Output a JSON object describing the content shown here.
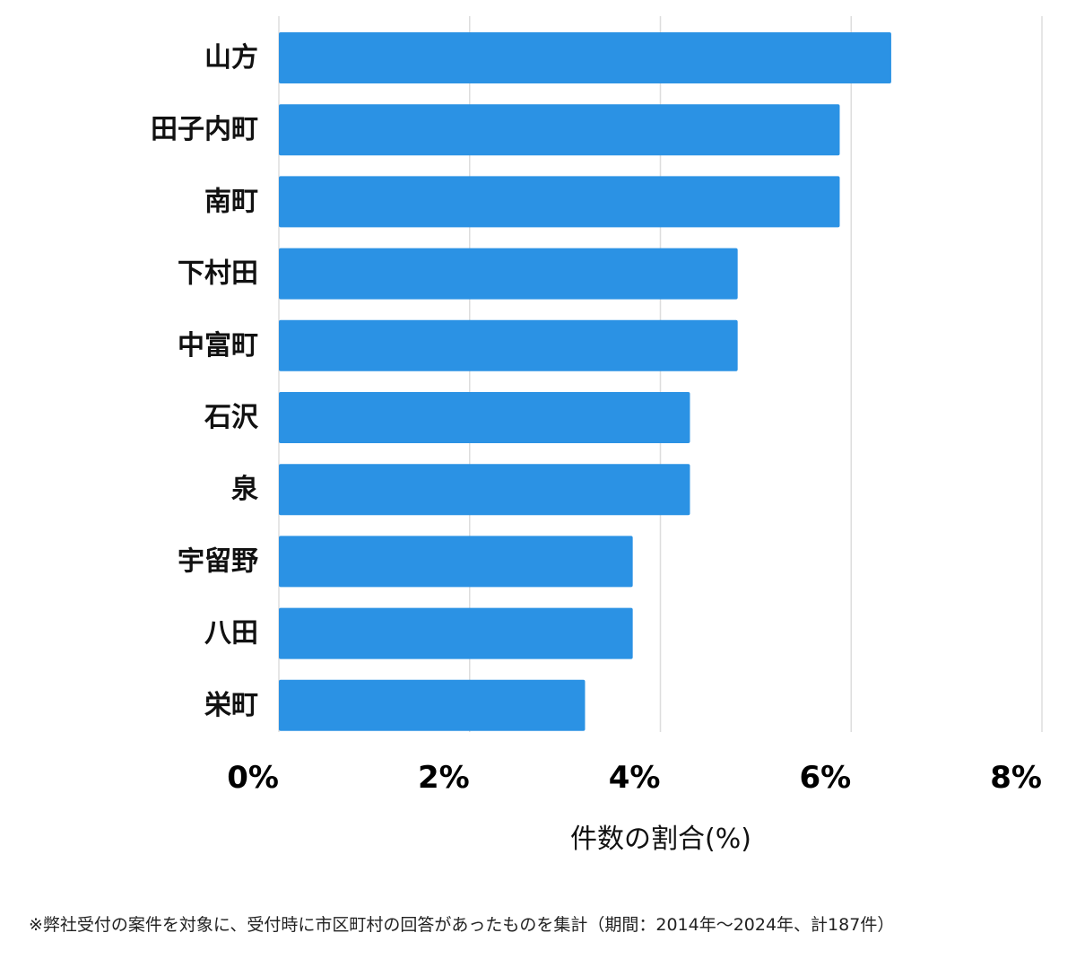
{
  "chart_data": {
    "type": "bar",
    "orientation": "horizontal",
    "categories": [
      "山方",
      "田子内町",
      "南町",
      "下村田",
      "中富町",
      "石沢",
      "泉",
      "宇留野",
      "八田",
      "栄町"
    ],
    "values": [
      6.42,
      5.88,
      5.88,
      4.81,
      4.81,
      4.31,
      4.31,
      3.71,
      3.71,
      3.21
    ],
    "xlim": [
      0,
      8
    ],
    "xticks": [
      0,
      2,
      4,
      6,
      8
    ],
    "tick_labels": [
      "0%",
      "2%",
      "4%",
      "6%",
      "8%"
    ],
    "xlabel": "件数の割合(%)",
    "ylabel": "",
    "grid": true,
    "bar_color": "#2b92e4",
    "grid_color": "#dddddd"
  },
  "footnote": "※弊社受付の案件を対象に、受付時に市区町村の回答があったものを集計（期間：2014年～2024年、計187件）"
}
